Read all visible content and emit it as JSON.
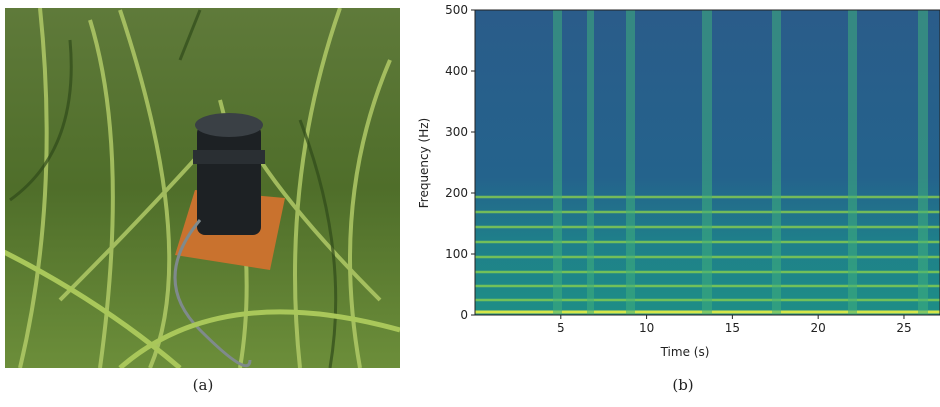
{
  "captions": [
    "(a)",
    "(b)"
  ],
  "chart_data": {
    "type": "spectrogram",
    "xlabel": "Time (s)",
    "ylabel": "Frequency (Hz)",
    "xlim": [
      0,
      27.1
    ],
    "ylim": [
      0,
      500
    ],
    "xticks": [
      5,
      10,
      15,
      20,
      25
    ],
    "yticks": [
      0,
      100,
      200,
      300,
      400,
      500
    ]
  }
}
